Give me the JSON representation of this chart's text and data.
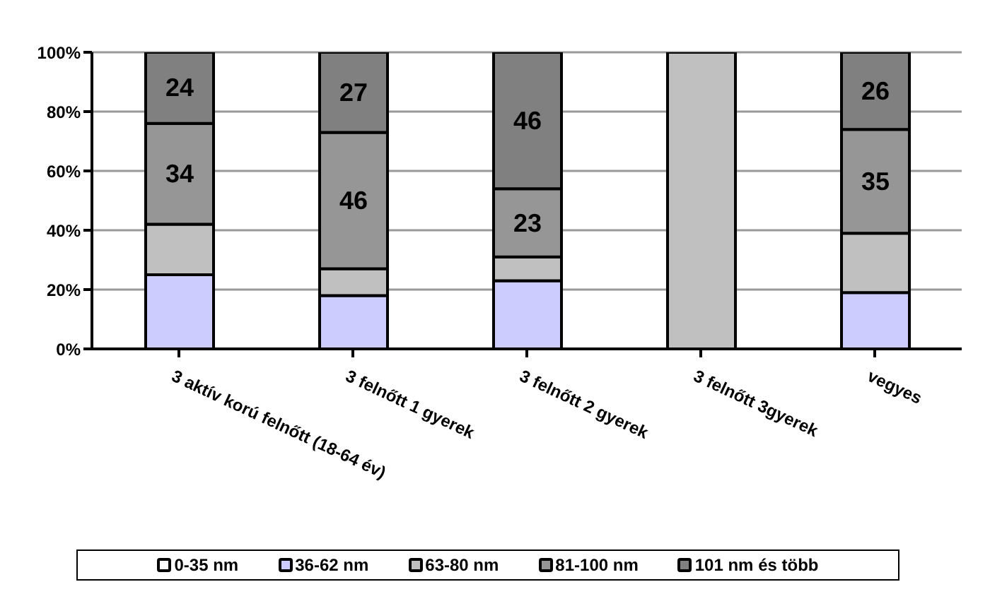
{
  "chart_data": {
    "type": "bar",
    "stacked": true,
    "categories": [
      "3 aktív korú felnőtt (18-64 év)",
      "3 felnőtt 1 gyerek",
      "3 felnőtt 2 gyerek",
      "3 felnőtt 3gyerek",
      "vegyes"
    ],
    "series": [
      {
        "name": "0-35 nm",
        "color": "#ffffff",
        "values": [
          0,
          0,
          0,
          0,
          0
        ]
      },
      {
        "name": "36-62 nm",
        "color": "#ccccff",
        "values": [
          25,
          18,
          23,
          0,
          19
        ]
      },
      {
        "name": "63-80 nm",
        "color": "#c0c0c0",
        "values": [
          17,
          9,
          8,
          100,
          20
        ]
      },
      {
        "name": "81-100 nm",
        "color": "#969696",
        "values": [
          34,
          46,
          23,
          0,
          35
        ],
        "value_labels": [
          "34",
          "46",
          "23",
          null,
          "35"
        ]
      },
      {
        "name": "101 nm és több",
        "color": "#808080",
        "values": [
          24,
          27,
          46,
          0,
          26
        ],
        "value_labels": [
          "24",
          "27",
          "46",
          null,
          "26"
        ]
      }
    ],
    "ylim": [
      0,
      100
    ],
    "yticks": [
      {
        "value": 0,
        "label": "0%"
      },
      {
        "value": 20,
        "label": "20%"
      },
      {
        "value": 40,
        "label": "40%"
      },
      {
        "value": 60,
        "label": "60%"
      },
      {
        "value": 80,
        "label": "80%"
      },
      {
        "value": 100,
        "label": "100%"
      }
    ],
    "grid": "y",
    "legend": "bottom"
  }
}
